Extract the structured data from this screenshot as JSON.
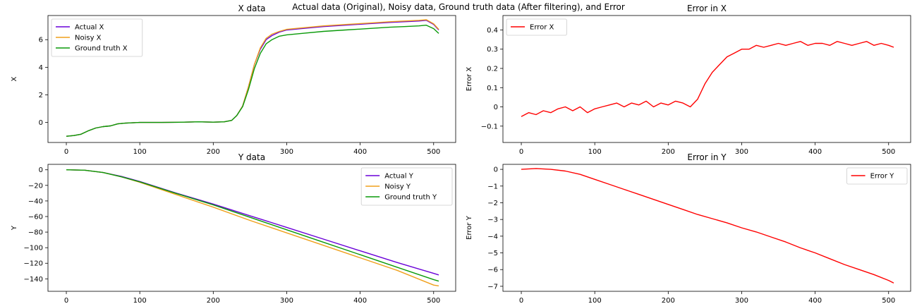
{
  "suptitle": "Actual data (Original), Noisy data, Ground truth data (After filtering), and Error",
  "colors": {
    "actual": "#6a00d8",
    "noisy": "#f0a01c",
    "ground_truth": "#0a9a0a",
    "error": "#ff0000"
  },
  "chart_data": [
    {
      "id": "x_data",
      "type": "line",
      "title": "X data",
      "xlabel": "",
      "ylabel": "X",
      "xlim": [
        -25,
        530
      ],
      "ylim": [
        -1.45,
        7.75
      ],
      "xticks": [
        0,
        100,
        200,
        300,
        400,
        500
      ],
      "yticks": [
        0,
        2,
        4,
        6
      ],
      "legend": "top-left",
      "series": [
        {
          "name": "Actual X",
          "color_key": "actual",
          "x": [
            0,
            10,
            20,
            30,
            40,
            50,
            60,
            70,
            80,
            100,
            130,
            160,
            180,
            200,
            215,
            225,
            232,
            240,
            248,
            256,
            264,
            272,
            280,
            290,
            300,
            320,
            350,
            380,
            410,
            440,
            460,
            480,
            490,
            500,
            507
          ],
          "y": [
            -1.0,
            -0.95,
            -0.85,
            -0.6,
            -0.4,
            -0.3,
            -0.25,
            -0.1,
            -0.05,
            0.0,
            0.0,
            0.02,
            0.05,
            0.02,
            0.05,
            0.15,
            0.5,
            1.2,
            2.6,
            4.2,
            5.3,
            6.0,
            6.3,
            6.55,
            6.7,
            6.8,
            6.95,
            7.05,
            7.15,
            7.25,
            7.3,
            7.35,
            7.4,
            7.1,
            6.7
          ]
        },
        {
          "name": "Noisy X",
          "color_key": "noisy",
          "x": [
            0,
            10,
            20,
            30,
            40,
            50,
            60,
            70,
            80,
            100,
            130,
            160,
            180,
            200,
            215,
            225,
            232,
            240,
            248,
            256,
            264,
            272,
            280,
            290,
            300,
            320,
            350,
            380,
            410,
            440,
            460,
            480,
            490,
            500,
            507
          ],
          "y": [
            -1.0,
            -0.95,
            -0.85,
            -0.6,
            -0.4,
            -0.3,
            -0.25,
            -0.1,
            -0.05,
            0.0,
            0.0,
            0.02,
            0.05,
            0.02,
            0.05,
            0.15,
            0.5,
            1.2,
            2.6,
            4.2,
            5.4,
            6.1,
            6.4,
            6.6,
            6.75,
            6.85,
            7.0,
            7.1,
            7.2,
            7.3,
            7.35,
            7.4,
            7.45,
            7.15,
            6.75
          ]
        },
        {
          "name": "Ground truth X",
          "color_key": "ground_truth",
          "x": [
            0,
            10,
            20,
            30,
            40,
            50,
            60,
            70,
            80,
            100,
            130,
            160,
            180,
            200,
            215,
            225,
            232,
            240,
            248,
            256,
            264,
            272,
            280,
            290,
            300,
            320,
            350,
            380,
            410,
            440,
            460,
            480,
            490,
            500,
            507
          ],
          "y": [
            -1.0,
            -0.95,
            -0.85,
            -0.6,
            -0.4,
            -0.3,
            -0.25,
            -0.1,
            -0.05,
            0.0,
            0.0,
            0.02,
            0.05,
            0.02,
            0.05,
            0.15,
            0.5,
            1.15,
            2.4,
            3.9,
            5.0,
            5.7,
            6.0,
            6.25,
            6.35,
            6.45,
            6.6,
            6.7,
            6.8,
            6.9,
            6.95,
            7.0,
            7.05,
            6.8,
            6.45
          ]
        }
      ]
    },
    {
      "id": "error_x",
      "type": "line",
      "title": "Error in X",
      "xlabel": "",
      "ylabel": "Error X",
      "xlim": [
        -25,
        530
      ],
      "ylim": [
        -0.185,
        0.475
      ],
      "xticks": [
        0,
        100,
        200,
        300,
        400,
        500
      ],
      "yticks": [
        -0.1,
        0.0,
        0.1,
        0.2,
        0.3,
        0.4
      ],
      "legend": "top-left",
      "series": [
        {
          "name": "Error X",
          "color_key": "error",
          "x": [
            0,
            10,
            20,
            30,
            40,
            50,
            60,
            70,
            80,
            90,
            100,
            110,
            120,
            130,
            140,
            150,
            160,
            170,
            180,
            190,
            200,
            210,
            220,
            230,
            240,
            250,
            260,
            270,
            280,
            290,
            300,
            310,
            320,
            330,
            340,
            350,
            360,
            370,
            380,
            390,
            400,
            410,
            420,
            430,
            440,
            450,
            460,
            470,
            480,
            490,
            500,
            507
          ],
          "y": [
            -0.05,
            -0.03,
            -0.04,
            -0.02,
            -0.03,
            -0.01,
            0.0,
            -0.02,
            0.0,
            -0.03,
            -0.01,
            0.0,
            0.01,
            0.02,
            0.0,
            0.02,
            0.01,
            0.03,
            0.0,
            0.02,
            0.01,
            0.03,
            0.02,
            0.0,
            0.04,
            0.12,
            0.18,
            0.22,
            0.26,
            0.28,
            0.3,
            0.3,
            0.32,
            0.31,
            0.32,
            0.33,
            0.32,
            0.33,
            0.34,
            0.32,
            0.33,
            0.33,
            0.32,
            0.34,
            0.33,
            0.32,
            0.33,
            0.34,
            0.32,
            0.33,
            0.32,
            0.31
          ]
        }
      ]
    },
    {
      "id": "y_data",
      "type": "line",
      "title": "Y data",
      "xlabel": "",
      "ylabel": "Y",
      "xlim": [
        -25,
        530
      ],
      "ylim": [
        -156,
        7
      ],
      "xticks": [
        0,
        100,
        200,
        300,
        400,
        500
      ],
      "yticks": [
        0,
        -20,
        -40,
        -60,
        -80,
        -100,
        -120,
        -140
      ],
      "legend": "top-right",
      "series": [
        {
          "name": "Actual Y",
          "color_key": "actual",
          "x": [
            0,
            25,
            50,
            75,
            100,
            150,
            200,
            250,
            300,
            350,
            400,
            450,
            500,
            507
          ],
          "y": [
            0,
            -0.5,
            -3.5,
            -8.5,
            -15,
            -30,
            -44,
            -59,
            -74,
            -89,
            -104,
            -119,
            -133,
            -135
          ]
        },
        {
          "name": "Noisy Y",
          "color_key": "noisy",
          "x": [
            0,
            25,
            50,
            75,
            100,
            150,
            200,
            250,
            300,
            350,
            400,
            450,
            500,
            507
          ],
          "y": [
            0,
            -0.5,
            -3.5,
            -9,
            -16,
            -32,
            -48,
            -65,
            -81,
            -97,
            -113,
            -129,
            -148,
            -149
          ]
        },
        {
          "name": "Ground truth Y",
          "color_key": "ground_truth",
          "x": [
            0,
            25,
            50,
            75,
            100,
            150,
            200,
            250,
            300,
            350,
            400,
            450,
            500,
            507
          ],
          "y": [
            0,
            -0.5,
            -3.5,
            -9,
            -15.5,
            -30.5,
            -45,
            -61,
            -77,
            -93,
            -109,
            -125,
            -141,
            -143
          ]
        }
      ]
    },
    {
      "id": "error_y",
      "type": "line",
      "title": "Error in Y",
      "xlabel": "",
      "ylabel": "Error Y",
      "xlim": [
        -25,
        530
      ],
      "ylim": [
        -7.3,
        0.3
      ],
      "xticks": [
        0,
        100,
        200,
        300,
        400,
        500
      ],
      "yticks": [
        0,
        -1,
        -2,
        -3,
        -4,
        -5,
        -6,
        -7
      ],
      "legend": "top-right",
      "series": [
        {
          "name": "Error Y",
          "color_key": "error",
          "x": [
            0,
            20,
            40,
            60,
            80,
            100,
            120,
            140,
            160,
            180,
            200,
            220,
            240,
            260,
            280,
            300,
            320,
            340,
            360,
            380,
            400,
            420,
            440,
            460,
            480,
            500,
            507
          ],
          "y": [
            0.0,
            0.05,
            0.0,
            -0.1,
            -0.3,
            -0.6,
            -0.9,
            -1.2,
            -1.5,
            -1.8,
            -2.1,
            -2.4,
            -2.7,
            -2.95,
            -3.2,
            -3.5,
            -3.75,
            -4.05,
            -4.35,
            -4.7,
            -5.0,
            -5.35,
            -5.7,
            -6.0,
            -6.3,
            -6.65,
            -6.8
          ]
        }
      ]
    }
  ]
}
